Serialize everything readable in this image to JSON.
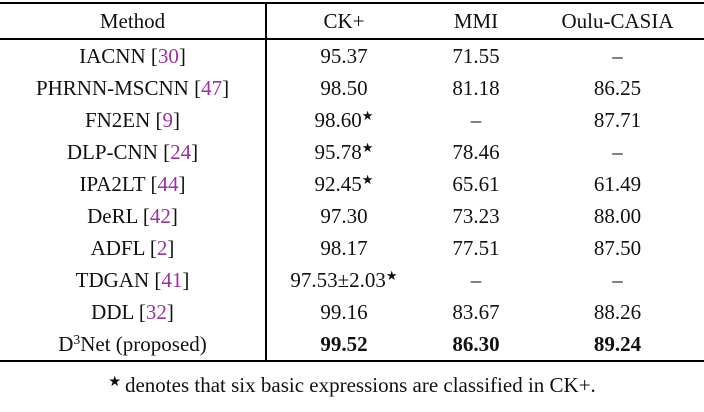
{
  "citation_color": "#9b30a2",
  "text_color": "#111111",
  "rule_color": "#000000",
  "table": {
    "columns": [
      "Method",
      "CK+",
      "MMI",
      "Oulu-CASIA"
    ],
    "rows": [
      {
        "method": {
          "pre": "IACNN",
          "sup": "",
          "post": ""
        },
        "cite": "30",
        "bold": false,
        "cells": [
          {
            "text": "95.37",
            "sup": ""
          },
          {
            "text": "71.55",
            "sup": ""
          },
          {
            "text": "–",
            "sup": ""
          }
        ]
      },
      {
        "method": {
          "pre": "PHRNN-MSCNN",
          "sup": "",
          "post": ""
        },
        "cite": "47",
        "bold": false,
        "cells": [
          {
            "text": "98.50",
            "sup": ""
          },
          {
            "text": "81.18",
            "sup": ""
          },
          {
            "text": "86.25",
            "sup": ""
          }
        ]
      },
      {
        "method": {
          "pre": "FN2EN",
          "sup": "",
          "post": ""
        },
        "cite": "9",
        "bold": false,
        "cells": [
          {
            "text": "98.60",
            "sup": "★"
          },
          {
            "text": "–",
            "sup": ""
          },
          {
            "text": "87.71",
            "sup": ""
          }
        ]
      },
      {
        "method": {
          "pre": "DLP-CNN",
          "sup": "",
          "post": ""
        },
        "cite": "24",
        "bold": false,
        "cells": [
          {
            "text": "95.78",
            "sup": "★"
          },
          {
            "text": "78.46",
            "sup": ""
          },
          {
            "text": "–",
            "sup": ""
          }
        ]
      },
      {
        "method": {
          "pre": "IPA2LT",
          "sup": "",
          "post": ""
        },
        "cite": "44",
        "bold": false,
        "cells": [
          {
            "text": "92.45",
            "sup": "★"
          },
          {
            "text": "65.61",
            "sup": ""
          },
          {
            "text": "61.49",
            "sup": ""
          }
        ]
      },
      {
        "method": {
          "pre": "DeRL",
          "sup": "",
          "post": ""
        },
        "cite": "42",
        "bold": false,
        "cells": [
          {
            "text": "97.30",
            "sup": ""
          },
          {
            "text": "73.23",
            "sup": ""
          },
          {
            "text": "88.00",
            "sup": ""
          }
        ]
      },
      {
        "method": {
          "pre": "ADFL",
          "sup": "",
          "post": ""
        },
        "cite": "2",
        "bold": false,
        "cells": [
          {
            "text": "98.17",
            "sup": ""
          },
          {
            "text": "77.51",
            "sup": ""
          },
          {
            "text": "87.50",
            "sup": ""
          }
        ]
      },
      {
        "method": {
          "pre": "TDGAN",
          "sup": "",
          "post": ""
        },
        "cite": "41",
        "bold": false,
        "cells": [
          {
            "text": "97.53±2.03",
            "sup": "★"
          },
          {
            "text": "–",
            "sup": ""
          },
          {
            "text": "–",
            "sup": ""
          }
        ]
      },
      {
        "method": {
          "pre": "DDL",
          "sup": "",
          "post": ""
        },
        "cite": "32",
        "bold": false,
        "cells": [
          {
            "text": "99.16",
            "sup": ""
          },
          {
            "text": "83.67",
            "sup": ""
          },
          {
            "text": "88.26",
            "sup": ""
          }
        ]
      },
      {
        "method": {
          "pre": "D",
          "sup": "3",
          "post": "Net (proposed)"
        },
        "cite": "",
        "bold": true,
        "cells": [
          {
            "text": "99.52",
            "sup": ""
          },
          {
            "text": "86.30",
            "sup": ""
          },
          {
            "text": "89.24",
            "sup": ""
          }
        ]
      }
    ]
  },
  "footnote": {
    "star": "★",
    "text": "denotes that six basic expressions are classified in CK+."
  }
}
